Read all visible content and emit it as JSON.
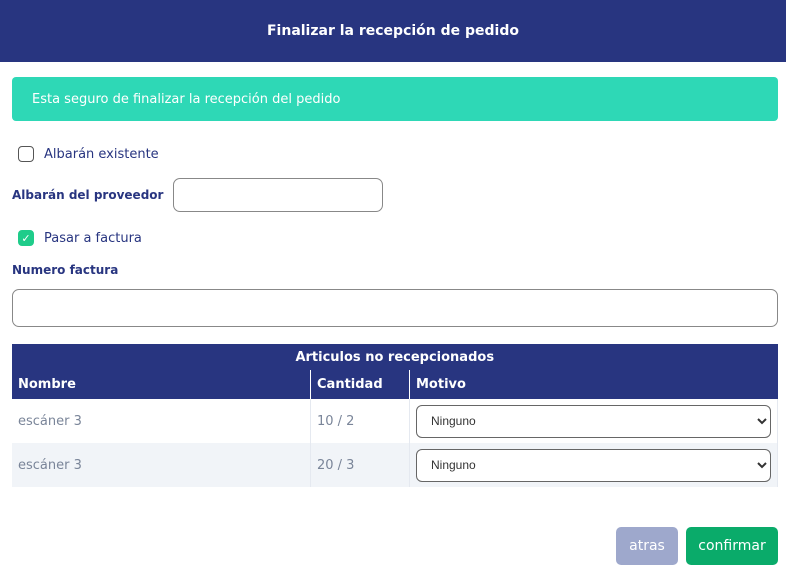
{
  "dialog": {
    "title": "Finalizar la recepción de pedido",
    "alert": "Esta seguro de finalizar la recepción del pedido"
  },
  "form": {
    "albaran_existente": {
      "label": "Albarán existente",
      "checked": false
    },
    "albaran_proveedor": {
      "label": "Albarán del proveedor",
      "value": ""
    },
    "pasar_factura": {
      "label": "Pasar a factura",
      "checked": true,
      "mark": "✓"
    },
    "numero_factura": {
      "label": "Numero factura",
      "value": ""
    }
  },
  "table": {
    "title": "Articulos no recepcionados",
    "headers": [
      "Nombre",
      "Cantidad",
      "Motivo"
    ],
    "rows": [
      {
        "nombre": "escáner 3",
        "cantidad": "10 / 2",
        "motivo": "Ninguno"
      },
      {
        "nombre": "escáner 3",
        "cantidad": "20 / 3",
        "motivo": "Ninguno"
      }
    ]
  },
  "buttons": {
    "back": "atras",
    "confirm": "confirmar"
  },
  "colors": {
    "header": "#283580",
    "alert": "#2ed8b6",
    "confirm": "#0aab6a",
    "back": "#9ea8cc"
  }
}
